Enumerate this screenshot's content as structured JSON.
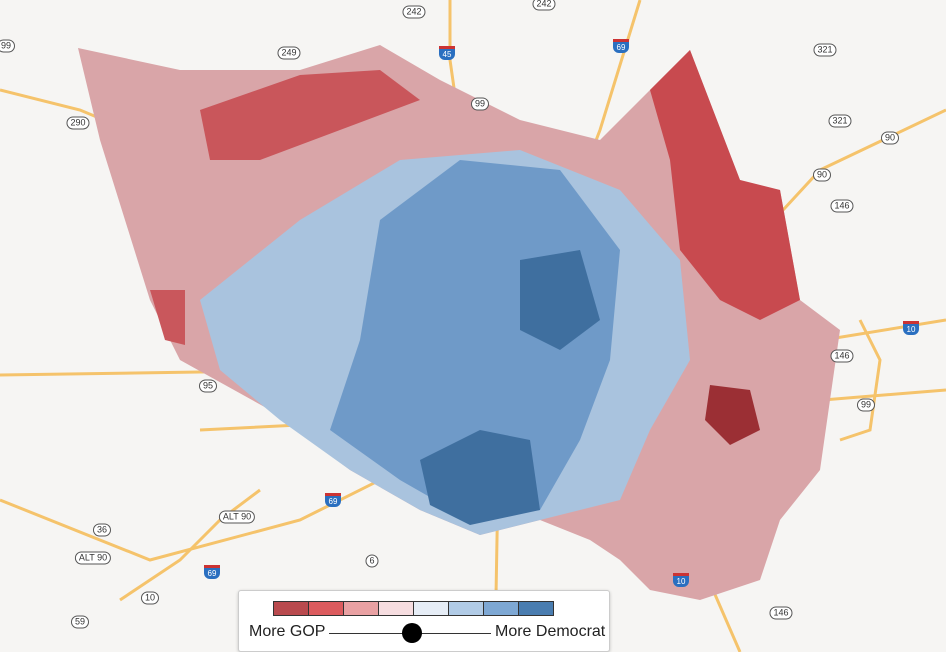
{
  "map": {
    "shields": [
      {
        "label": "242",
        "type": "state"
      },
      {
        "label": "242",
        "type": "state"
      },
      {
        "label": "249",
        "type": "state"
      },
      {
        "label": "290",
        "type": "us"
      },
      {
        "label": "99",
        "type": "state"
      },
      {
        "label": "45",
        "type": "interstate"
      },
      {
        "label": "69",
        "type": "interstate"
      },
      {
        "label": "321",
        "type": "state"
      },
      {
        "label": "321",
        "type": "state"
      },
      {
        "label": "90",
        "type": "us"
      },
      {
        "label": "90",
        "type": "us"
      },
      {
        "label": "146",
        "type": "state"
      },
      {
        "label": "146",
        "type": "state"
      },
      {
        "label": "10",
        "type": "interstate"
      },
      {
        "label": "99",
        "type": "state"
      },
      {
        "label": "95",
        "type": "state"
      },
      {
        "label": "36",
        "type": "state"
      },
      {
        "label": "ALT 90",
        "type": "us"
      },
      {
        "label": "ALT 90",
        "type": "us"
      },
      {
        "label": "69",
        "type": "interstate"
      },
      {
        "label": "69",
        "type": "interstate"
      },
      {
        "label": "6",
        "type": "state"
      },
      {
        "label": "10",
        "type": "state"
      },
      {
        "label": "59",
        "type": "us"
      },
      {
        "label": "146",
        "type": "state"
      },
      {
        "label": "10",
        "type": "interstate"
      },
      {
        "label": "99",
        "type": "state"
      }
    ]
  },
  "legend": {
    "left_label": "More GOP",
    "right_label": "More Democrat",
    "colors": [
      "#b94a4e",
      "#dc5b5e",
      "#e9a1a3",
      "#f6dde0",
      "#e6edf6",
      "#b1cbe6",
      "#7ea8d4",
      "#4a7db0"
    ],
    "slider_value": 0.5
  }
}
